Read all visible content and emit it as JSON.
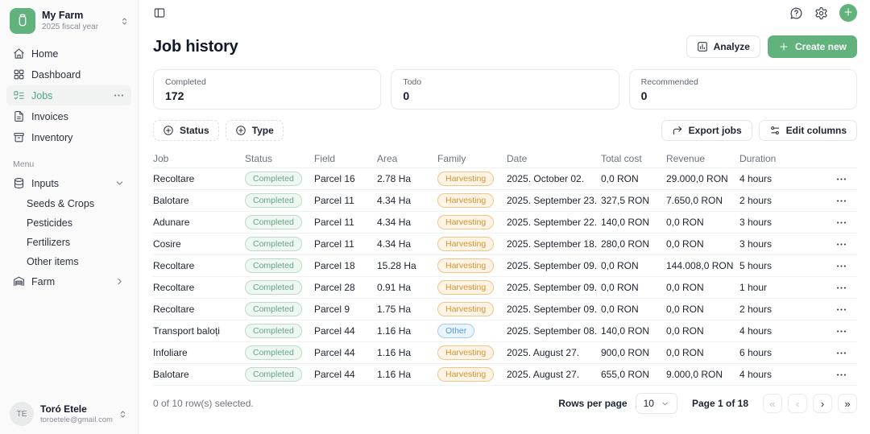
{
  "colors": {
    "accent_green": "#62b27e",
    "active_nav_green": "#4da583",
    "completed_badge": {
      "bg": "#eef7f1",
      "border": "#bbdcc8",
      "text": "#65a585"
    },
    "harvesting_badge": {
      "bg": "#fdf4e5",
      "border": "#f2c488",
      "text": "#d9912f"
    },
    "other_badge": {
      "bg": "#eaf4fc",
      "border": "#a6cded",
      "text": "#4f9bd6"
    }
  },
  "sidebar": {
    "org": {
      "name": "My Farm",
      "subtitle": "2025 fiscal year",
      "logo_icon": "jar-icon",
      "switch_icon": "chevrons-up-down-icon"
    },
    "nav": [
      {
        "label": "Home",
        "icon": "home-icon",
        "active": false
      },
      {
        "label": "Dashboard",
        "icon": "dashboard-icon",
        "active": false
      },
      {
        "label": "Jobs",
        "icon": "jobs-icon",
        "active": true,
        "more": true
      },
      {
        "label": "Invoices",
        "icon": "invoices-icon",
        "active": false
      },
      {
        "label": "Inventory",
        "icon": "inventory-icon",
        "active": false
      }
    ],
    "menu_label": "Menu",
    "menu": [
      {
        "label": "Inputs",
        "icon": "inputs-icon",
        "chevron": "chevron-down-icon",
        "children": [
          "Seeds & Crops",
          "Pesticides",
          "Fertilizers",
          "Other items"
        ]
      },
      {
        "label": "Farm",
        "icon": "farm-icon",
        "chevron": "chevron-right-icon",
        "children": []
      }
    ],
    "user": {
      "initials": "TE",
      "name": "Toró Etele",
      "email": "toroetele@gmail.com",
      "switch_icon": "chevrons-up-down-icon"
    }
  },
  "topbar": {
    "toggle_icon": "panel-left-icon",
    "right_icons": [
      "help-bubble-icon",
      "gear-icon",
      "add-circle-icon"
    ]
  },
  "header": {
    "title": "Job history",
    "analyze_label": "Analyze",
    "analyze_icon": "bar-chart-icon",
    "create_label": "Create new",
    "create_icon": "plus-icon"
  },
  "stats": [
    {
      "label": "Completed",
      "value": "172"
    },
    {
      "label": "Todo",
      "value": "0"
    },
    {
      "label": "Recommended",
      "value": "0"
    }
  ],
  "filters": {
    "status_label": "Status",
    "status_icon": "circle-plus-icon",
    "type_label": "Type",
    "type_icon": "circle-plus-icon",
    "export_label": "Export jobs",
    "export_icon": "corner-up-right-icon",
    "edit_columns_label": "Edit columns",
    "edit_columns_icon": "sliders-icon"
  },
  "table": {
    "columns": [
      "Job",
      "Status",
      "Field",
      "Area",
      "Family",
      "Date",
      "Total cost",
      "Revenue",
      "Duration"
    ],
    "rows": [
      {
        "job": "Recoltare",
        "status": "Completed",
        "field": "Parcel 16",
        "area": "2.78 Ha",
        "family": "Harvesting",
        "date": "2025. October 02.",
        "total_cost": "0,0 RON",
        "revenue": "29.000,0 RON",
        "duration": "4 hours"
      },
      {
        "job": "Balotare",
        "status": "Completed",
        "field": "Parcel 11",
        "area": "4.34 Ha",
        "family": "Harvesting",
        "date": "2025. September 23.",
        "total_cost": "327,5 RON",
        "revenue": "7.650,0 RON",
        "duration": "2 hours"
      },
      {
        "job": "Adunare",
        "status": "Completed",
        "field": "Parcel 11",
        "area": "4.34 Ha",
        "family": "Harvesting",
        "date": "2025. September 22.",
        "total_cost": "140,0 RON",
        "revenue": "0,0 RON",
        "duration": "3 hours"
      },
      {
        "job": "Cosire",
        "status": "Completed",
        "field": "Parcel 11",
        "area": "4.34 Ha",
        "family": "Harvesting",
        "date": "2025. September 18.",
        "total_cost": "280,0 RON",
        "revenue": "0,0 RON",
        "duration": "3 hours"
      },
      {
        "job": "Recoltare",
        "status": "Completed",
        "field": "Parcel 18",
        "area": "15.28 Ha",
        "family": "Harvesting",
        "date": "2025. September 09.",
        "total_cost": "0,0 RON",
        "revenue": "144.008,0 RON",
        "duration": "5 hours"
      },
      {
        "job": "Recoltare",
        "status": "Completed",
        "field": "Parcel 28",
        "area": "0.91 Ha",
        "family": "Harvesting",
        "date": "2025. September 09.",
        "total_cost": "0,0 RON",
        "revenue": "0,0 RON",
        "duration": "1 hour"
      },
      {
        "job": "Recoltare",
        "status": "Completed",
        "field": "Parcel 9",
        "area": "1.75 Ha",
        "family": "Harvesting",
        "date": "2025. September 09.",
        "total_cost": "0,0 RON",
        "revenue": "0,0 RON",
        "duration": "2 hours"
      },
      {
        "job": "Transport baloți",
        "status": "Completed",
        "field": "Parcel 44",
        "area": "1.16 Ha",
        "family": "Other",
        "date": "2025. September 08.",
        "total_cost": "140,0 RON",
        "revenue": "0,0 RON",
        "duration": "4 hours"
      },
      {
        "job": "Infoliare",
        "status": "Completed",
        "field": "Parcel 44",
        "area": "1.16 Ha",
        "family": "Harvesting",
        "date": "2025. August 27.",
        "total_cost": "900,0 RON",
        "revenue": "0,0 RON",
        "duration": "6 hours"
      },
      {
        "job": "Balotare",
        "status": "Completed",
        "field": "Parcel 44",
        "area": "1.16 Ha",
        "family": "Harvesting",
        "date": "2025. August 27.",
        "total_cost": "655,0 RON",
        "revenue": "9.000,0 RON",
        "duration": "4 hours"
      }
    ]
  },
  "footer": {
    "selection": "0 of 10 row(s) selected.",
    "rows_per_page_label": "Rows per page",
    "rows_per_page_value": "10",
    "page_info": "Page 1 of 18",
    "pagination": [
      {
        "glyph": "«",
        "name": "first-page-button",
        "disabled": true
      },
      {
        "glyph": "‹",
        "name": "prev-page-button",
        "disabled": true
      },
      {
        "glyph": "›",
        "name": "next-page-button",
        "disabled": false
      },
      {
        "glyph": "»",
        "name": "last-page-button",
        "disabled": false
      }
    ]
  }
}
